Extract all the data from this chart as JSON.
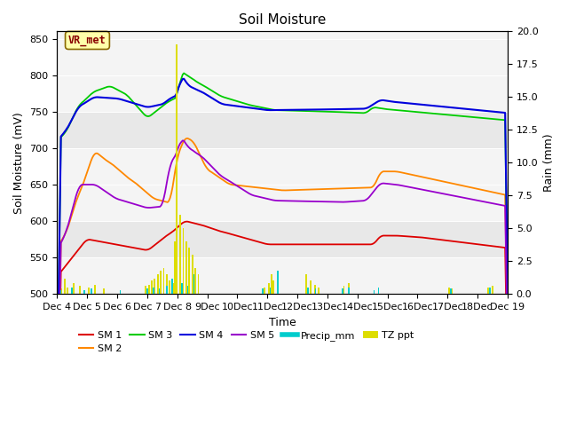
{
  "title": "Soil Moisture",
  "xlabel": "Time",
  "ylabel_left": "Soil Moisture (mV)",
  "ylabel_right": "Rain (mm)",
  "ylim_left": [
    500,
    860
  ],
  "ylim_right": [
    0,
    20
  ],
  "xlim": [
    0,
    15
  ],
  "x_tick_labels": [
    "Dec 4",
    "Dec 5",
    "Dec 6",
    "Dec 7",
    "Dec 8",
    "9Dec",
    "10Dec",
    "11Dec",
    "12Dec",
    "13Dec",
    "14Dec",
    "15Dec",
    "16Dec",
    "17Dec",
    "18Dec 19"
  ],
  "background_color": "#ffffff",
  "sm1_color": "#dd0000",
  "sm2_color": "#ff8800",
  "sm3_color": "#00cc00",
  "sm4_color": "#0000dd",
  "sm5_color": "#9900cc",
  "precip_color": "#00cccc",
  "tzppt_color": "#dddd00",
  "vr_met_label": "VR_met",
  "vr_met_bg": "#ffffaa",
  "vr_met_border": "#886600",
  "vr_met_text_color": "#880000",
  "title_fontsize": 11,
  "axis_fontsize": 9,
  "tick_fontsize": 8
}
